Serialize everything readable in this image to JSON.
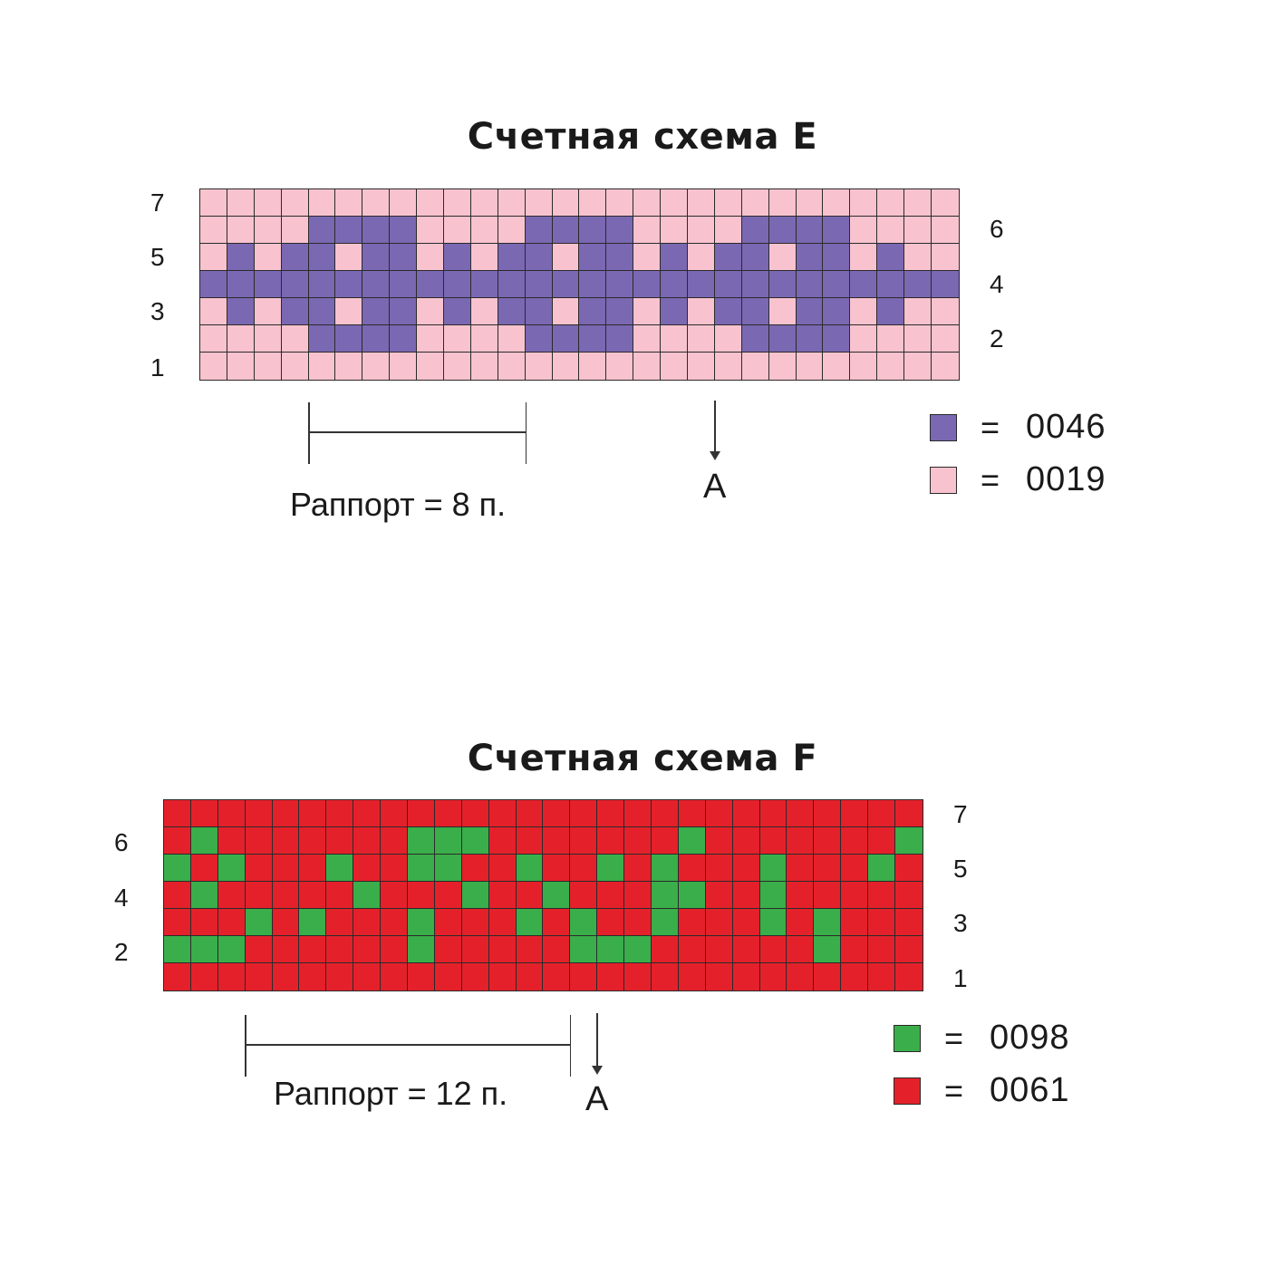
{
  "chart_e": {
    "title": "Счетная схема E",
    "colors": {
      "1": "#7b68b2",
      "0": "#f8c3cf"
    },
    "rows": [
      "0000000000000000000000000000",
      "0000111100001111000011110000",
      "0101101101011011010110110100",
      "1111111111111111111111111111",
      "0101101101011011010110110100",
      "0000111100001111000011110000",
      "0000000000000000000000000000"
    ],
    "row_numbers_left": [
      "7",
      "5",
      "3",
      "1"
    ],
    "row_numbers_right": [
      "6",
      "4",
      "2"
    ],
    "rapport": "Раппорт = 8 п.",
    "arrow_label": "A",
    "legend": [
      {
        "color": "#7b68b2",
        "eq": "=",
        "code": "0046"
      },
      {
        "color": "#f8c3cf",
        "eq": "=",
        "code": "0019"
      }
    ]
  },
  "chart_f": {
    "title": "Счетная схема F",
    "colors": {
      "1": "#3aae4a",
      "0": "#e4212b"
    },
    "rows": [
      "0000000000000000000000000000",
      "0100000001110000000100000001",
      "1010001001100100101000100010",
      "0100000100010010001100100000",
      "0001010001000101001000101000",
      "1110000001000001110000001000",
      "0000000000000000000000000000"
    ],
    "row_numbers_left": [
      "6",
      "4",
      "2"
    ],
    "row_numbers_right": [
      "7",
      "5",
      "3",
      "1"
    ],
    "rapport": "Раппорт = 12 п.",
    "arrow_label": "A",
    "legend": [
      {
        "color": "#3aae4a",
        "eq": "=",
        "code": "0098"
      },
      {
        "color": "#e4212b",
        "eq": "=",
        "code": "0061"
      }
    ]
  }
}
